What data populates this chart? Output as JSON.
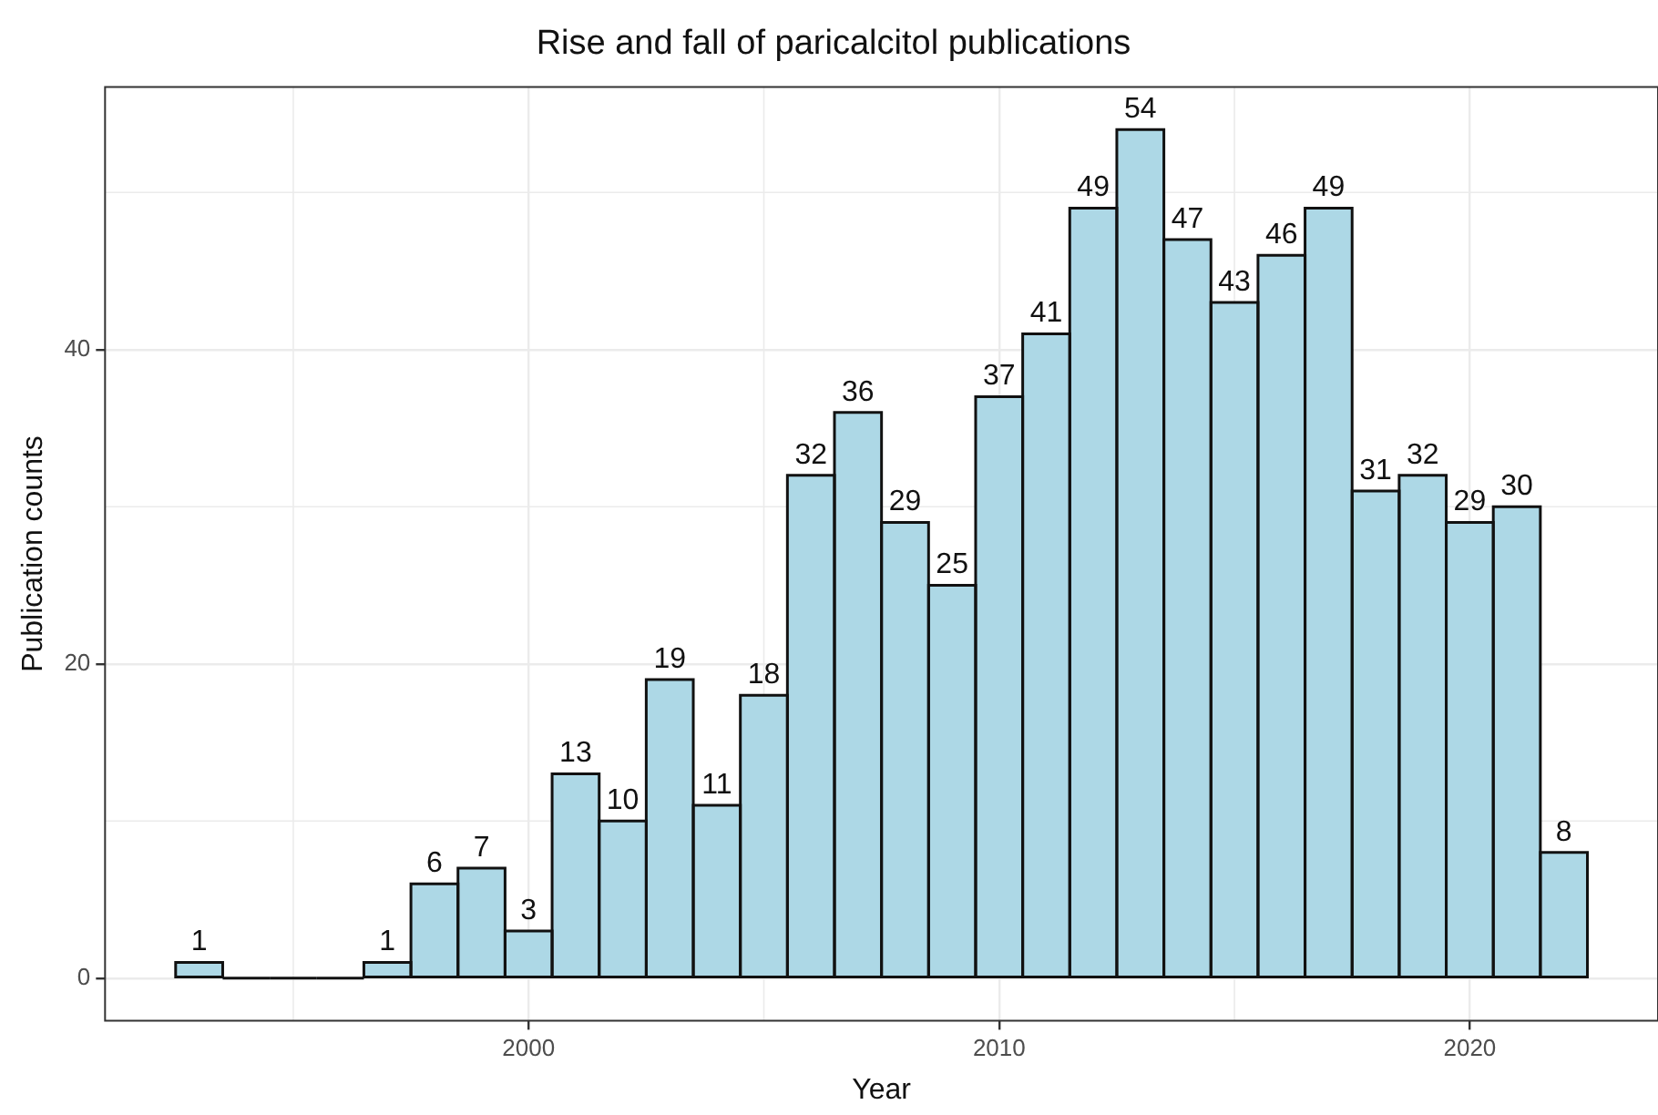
{
  "chart_data": {
    "type": "histogram",
    "title": "Rise and fall of paricalcitol publications",
    "xlabel": "Year",
    "ylabel": "Publication counts",
    "bins": [
      1992.5,
      1993.5,
      1994.5,
      1995.5,
      1996.5,
      1997.5,
      1998.5,
      1999.5,
      2000.5,
      2001.5,
      2002.5,
      2003.5,
      2004.5,
      2005.5,
      2006.5,
      2007.5,
      2008.5,
      2009.5,
      2010.5,
      2011.5,
      2012.5,
      2013.5,
      2014.5,
      2015.5,
      2016.5,
      2017.5,
      2018.5,
      2019.5,
      2020.5,
      2021.5,
      2022.5
    ],
    "values": [
      1,
      0,
      0,
      0,
      1,
      6,
      7,
      3,
      13,
      10,
      19,
      11,
      18,
      32,
      36,
      29,
      25,
      37,
      41,
      49,
      54,
      47,
      43,
      46,
      49,
      31,
      32,
      29,
      30,
      8
    ],
    "value_labels": [
      "1",
      null,
      null,
      null,
      "1",
      "6",
      "7",
      "3",
      "13",
      "10",
      "19",
      "11",
      "18",
      "32",
      "36",
      "29",
      "25",
      "37",
      "41",
      "49",
      "54",
      "47",
      "43",
      "46",
      "49",
      "31",
      "32",
      "29",
      "30",
      "8"
    ],
    "color": "#add8e6",
    "xlim": [
      1991,
      2024
    ],
    "xticks": [
      2000,
      2010,
      2020
    ],
    "ylim": [
      -2.7,
      56.7
    ],
    "yticks": [
      0,
      20,
      40
    ],
    "grid": true,
    "legend": false
  }
}
